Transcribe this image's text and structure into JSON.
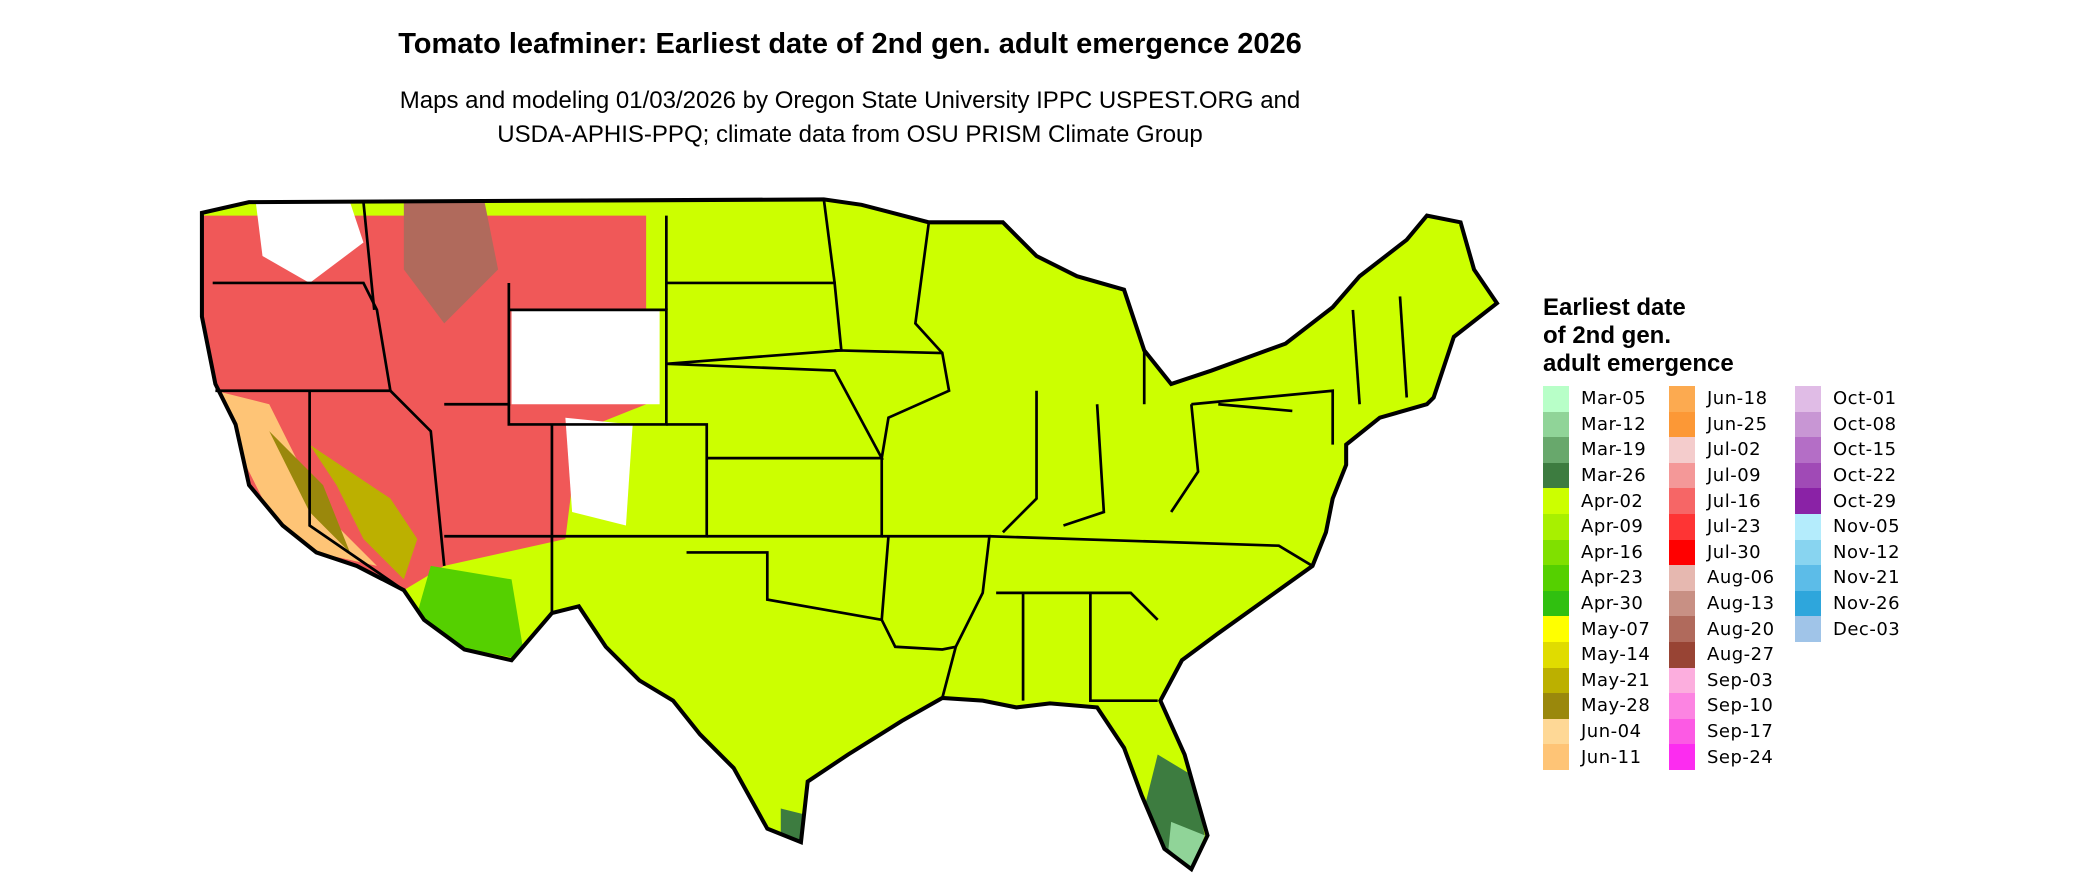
{
  "title": "Tomato leafminer: Earliest date of 2nd gen. adult emergence 2026",
  "subtitle_line1": "Maps and modeling 01/03/2026 by Oregon State University IPPC USPEST.ORG and",
  "subtitle_line2": "USDA-APHIS-PPQ; climate data from OSU PRISM Climate Group",
  "legend": {
    "title_lines": [
      "Earliest date",
      "of 2nd gen.",
      "adult emergence"
    ],
    "columns": [
      [
        {
          "label": "Mar-05",
          "color": "#b8ffc8"
        },
        {
          "label": "Mar-12",
          "color": "#90d498"
        },
        {
          "label": "Mar-19",
          "color": "#68a86c"
        },
        {
          "label": "Mar-26",
          "color": "#3d7c40"
        },
        {
          "label": "Apr-02",
          "color": "#ccff00"
        },
        {
          "label": "Apr-09",
          "color": "#a8f000"
        },
        {
          "label": "Apr-16",
          "color": "#80e000"
        },
        {
          "label": "Apr-23",
          "color": "#55d000"
        },
        {
          "label": "Apr-30",
          "color": "#30c010"
        },
        {
          "label": "May-07",
          "color": "#ffff00"
        },
        {
          "label": "May-14",
          "color": "#e0dc00"
        },
        {
          "label": "May-21",
          "color": "#bcb000"
        },
        {
          "label": "May-28",
          "color": "#9a880c"
        },
        {
          "label": "Jun-04",
          "color": "#fed896"
        },
        {
          "label": "Jun-11",
          "color": "#fec476"
        }
      ],
      [
        {
          "label": "Jun-18",
          "color": "#fcaa50"
        },
        {
          "label": "Jun-25",
          "color": "#fc9836"
        },
        {
          "label": "Jul-02",
          "color": "#f4cccc"
        },
        {
          "label": "Jul-09",
          "color": "#f49898"
        },
        {
          "label": "Jul-16",
          "color": "#f66666"
        },
        {
          "label": "Jul-23",
          "color": "#fe3434"
        },
        {
          "label": "Jul-30",
          "color": "#ff0000"
        },
        {
          "label": "Aug-06",
          "color": "#e6b8b0"
        },
        {
          "label": "Aug-13",
          "color": "#c89084"
        },
        {
          "label": "Aug-20",
          "color": "#b06a5c"
        },
        {
          "label": "Aug-27",
          "color": "#984434"
        },
        {
          "label": "Sep-03",
          "color": "#fcaede"
        },
        {
          "label": "Sep-10",
          "color": "#fc84e2"
        },
        {
          "label": "Sep-17",
          "color": "#fc5ae4"
        },
        {
          "label": "Sep-24",
          "color": "#fc2cf0"
        }
      ],
      [
        {
          "label": "Oct-01",
          "color": "#e0bce6"
        },
        {
          "label": "Oct-08",
          "color": "#c896d4"
        },
        {
          "label": "Oct-15",
          "color": "#b46ec6"
        },
        {
          "label": "Oct-22",
          "color": "#a04ab6"
        },
        {
          "label": "Oct-29",
          "color": "#8a22a6"
        },
        {
          "label": "Nov-05",
          "color": "#b4ecfc"
        },
        {
          "label": "Nov-12",
          "color": "#88d4f0"
        },
        {
          "label": "Nov-21",
          "color": "#5cbce8"
        },
        {
          "label": "Nov-26",
          "color": "#2ea6dc"
        },
        {
          "label": "Dec-03",
          "color": "#a0c4e8"
        }
      ]
    ]
  }
}
